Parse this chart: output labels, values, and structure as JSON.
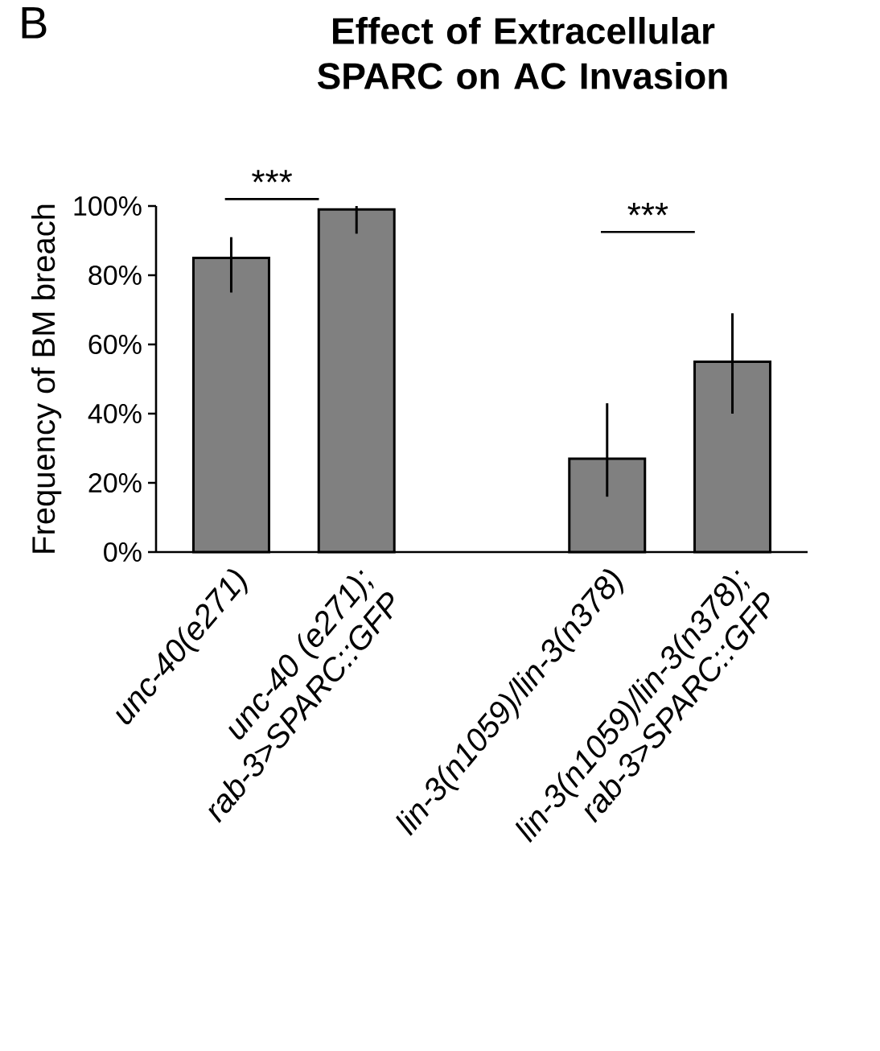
{
  "chart_data": {
    "type": "bar",
    "title": "Effect of Extracellular SPARC on AC Invasion",
    "ylabel": "Frequency of BM breach",
    "categories": [
      "unc-40(e271)",
      "unc-40 (e271); rab-3>SPARC::GFP",
      null,
      "lin-3(n1059)/lin-3(n378)",
      "lin-3(n1059)/lin-3(n378); rab-3>SPARC::GFP"
    ],
    "values": [
      85,
      99,
      null,
      27,
      55
    ],
    "errors": [
      [
        75,
        91
      ],
      [
        92,
        100
      ],
      null,
      [
        16,
        43
      ],
      [
        40,
        69
      ]
    ],
    "color": "#808080",
    "ylim": [
      0,
      100
    ],
    "yticks": [
      {
        "value": 0,
        "label": "0%"
      },
      {
        "value": 20,
        "label": "20%"
      },
      {
        "value": 40,
        "label": "40%"
      },
      {
        "value": 60,
        "label": "60%"
      },
      {
        "value": 80,
        "label": "80%"
      },
      {
        "value": 100,
        "label": "100%"
      }
    ],
    "annotations": [
      "B",
      "***",
      "***"
    ],
    "grid": false
  }
}
